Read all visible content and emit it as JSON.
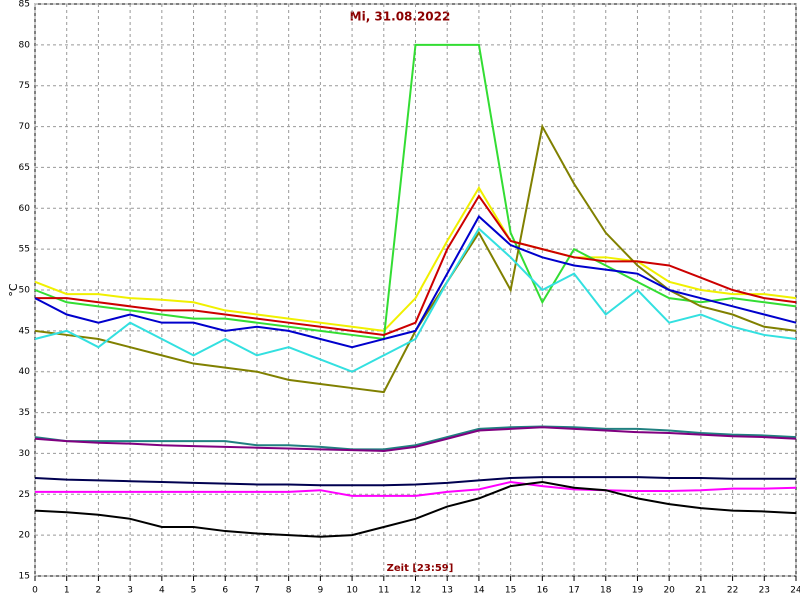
{
  "chart_data": {
    "type": "line",
    "title": "Mi, 31.08.2022",
    "y_label": "°C",
    "x_label": "Zeit [23:59]",
    "x": [
      0,
      1,
      2,
      3,
      4,
      5,
      6,
      7,
      8,
      9,
      10,
      11,
      12,
      13,
      14,
      15,
      16,
      17,
      18,
      19,
      20,
      21,
      22,
      23,
      24
    ],
    "xlim": [
      0,
      24
    ],
    "xticks": [
      0,
      1,
      2,
      3,
      4,
      5,
      6,
      7,
      8,
      9,
      10,
      11,
      12,
      13,
      14,
      15,
      16,
      17,
      18,
      19,
      20,
      21,
      22,
      23,
      24
    ],
    "ylim": [
      15,
      85
    ],
    "yticks": [
      15,
      20,
      25,
      30,
      35,
      40,
      45,
      50,
      55,
      60,
      65,
      70,
      75,
      80,
      85
    ],
    "grid": true,
    "series": [
      {
        "color": "#f0f000",
        "values": [
          51,
          49.5,
          49.5,
          49,
          48.8,
          48.5,
          47.5,
          47,
          46.5,
          46,
          45.5,
          45,
          49,
          56,
          62.5,
          56,
          55,
          54,
          54,
          53.5,
          51,
          50,
          49.5,
          49.5,
          49
        ]
      },
      {
        "color": "#33dd33",
        "values": [
          50,
          48.5,
          48,
          47.5,
          47,
          46.5,
          46.5,
          46,
          45.5,
          45,
          44.5,
          44,
          80,
          80,
          80,
          57,
          48.5,
          55,
          53,
          51,
          49,
          48.5,
          49,
          48.5,
          48
        ]
      },
      {
        "color": "#808000",
        "values": [
          45,
          44.5,
          44,
          43,
          42,
          41,
          40.5,
          40,
          39,
          38.5,
          38,
          37.5,
          45,
          51,
          57,
          50,
          70,
          63,
          57,
          53,
          50,
          48,
          47,
          45.5,
          45
        ]
      },
      {
        "color": "#cc0000",
        "values": [
          49,
          49,
          48.5,
          48,
          47.5,
          47.5,
          47,
          46.5,
          46,
          45.5,
          45,
          44.5,
          46,
          55,
          61.5,
          56,
          55,
          54,
          53.5,
          53.5,
          53,
          51.5,
          50,
          49,
          48.5
        ]
      },
      {
        "color": "#33e0e0",
        "values": [
          44,
          45,
          43,
          46,
          44,
          42,
          44,
          42,
          43,
          41.5,
          40,
          42,
          44,
          51,
          57.5,
          54,
          50,
          52,
          47,
          50,
          46,
          47,
          45.5,
          44.5,
          44
        ]
      },
      {
        "color": "#0000cc",
        "values": [
          49,
          47,
          46,
          47,
          46,
          46,
          45,
          45.5,
          45,
          44,
          43,
          44,
          45,
          52,
          59,
          55.5,
          54,
          53,
          52.5,
          52,
          50,
          49,
          48,
          47,
          46
        ]
      },
      {
        "color": "#208080",
        "values": [
          32,
          31.5,
          31.5,
          31.5,
          31.5,
          31.5,
          31.5,
          31,
          31,
          30.8,
          30.5,
          30.5,
          31,
          32,
          33,
          33.2,
          33.3,
          33.2,
          33,
          33,
          32.8,
          32.5,
          32.3,
          32.2,
          32
        ]
      },
      {
        "color": "#800080",
        "values": [
          31.8,
          31.5,
          31.3,
          31.2,
          31,
          30.9,
          30.8,
          30.7,
          30.6,
          30.5,
          30.4,
          30.3,
          30.8,
          31.8,
          32.8,
          33,
          33.2,
          33,
          32.8,
          32.6,
          32.5,
          32.3,
          32.1,
          32,
          31.8
        ]
      },
      {
        "color": "#000050",
        "values": [
          27,
          26.8,
          26.7,
          26.6,
          26.5,
          26.4,
          26.3,
          26.2,
          26.2,
          26.1,
          26.1,
          26.1,
          26.2,
          26.4,
          26.7,
          27,
          27.1,
          27.1,
          27.1,
          27.1,
          27,
          27,
          26.9,
          26.9,
          26.9
        ]
      },
      {
        "color": "#ff00ff",
        "values": [
          25.3,
          25.3,
          25.3,
          25.3,
          25.3,
          25.3,
          25.3,
          25.3,
          25.3,
          25.5,
          24.8,
          24.8,
          24.8,
          25.3,
          25.6,
          26.5,
          26,
          25.6,
          25.5,
          25.4,
          25.4,
          25.5,
          25.7,
          25.7,
          25.8
        ]
      },
      {
        "color": "#000000",
        "values": [
          23,
          22.8,
          22.5,
          22,
          21,
          21,
          20.5,
          20.2,
          20,
          19.8,
          20,
          21,
          22,
          23.5,
          24.5,
          26,
          26.5,
          25.8,
          25.5,
          24.5,
          23.8,
          23.3,
          23,
          22.9,
          22.7
        ]
      }
    ]
  }
}
